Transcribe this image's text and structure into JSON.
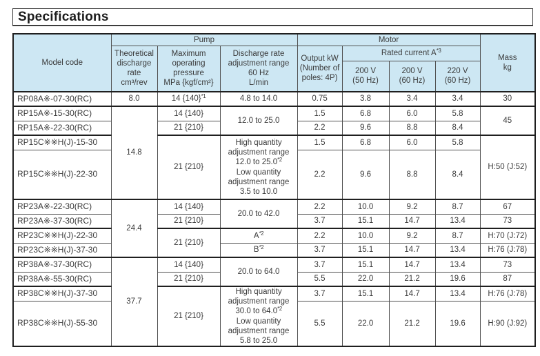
{
  "page": {
    "title": "Specifications"
  },
  "colors": {
    "header_fill": "#cde7f3",
    "border_thin": "#4f4f4f",
    "border_thick": "#1f1f1f",
    "text": "#3a3a3a"
  },
  "table": {
    "header": {
      "model_code": "Model code",
      "pump_group": "Pump",
      "motor_group": "Motor",
      "mass": "Mass\nkg",
      "theoretical_discharge": "Theoretical\ndischarge\nrate\ncm³/rev",
      "max_pressure": "Maximum\noperating\npressure\nMPa {kgf/cm²}",
      "discharge_range": "Discharge rate\nadjustment range\n60 Hz\nL/min",
      "output_kw": "Output kW\n(Number of\npoles: 4P)",
      "rated_current": "Rated current A*3",
      "v200_50": "200 V\n(50 Hz)",
      "v200_60": "200 V\n(60 Hz)",
      "v220_60": "220 V\n(60 Hz)"
    },
    "rows": [
      {
        "model": "RP08A※-07-30(RC)",
        "theoretical": "8.0",
        "pressure": "14 {140}*1",
        "range": "4.8 to 14.0",
        "output": "0.75",
        "a200_50": "3.8",
        "a200_60": "3.4",
        "a220_60": "3.4",
        "mass": "30"
      },
      {
        "model": "RP15A※-15-30(RC)",
        "theoretical": "14.8",
        "pressure": "14 {140}",
        "range": "12.0 to 25.0",
        "output": "1.5",
        "a200_50": "6.8",
        "a200_60": "6.0",
        "a220_60": "5.8",
        "mass": "45"
      },
      {
        "model": "RP15A※-22-30(RC)",
        "pressure": "21 {210}",
        "output": "2.2",
        "a200_50": "9.6",
        "a200_60": "8.8",
        "a220_60": "8.4"
      },
      {
        "model": "RP15C※※H(J)-15-30",
        "pressure": "21 {210}",
        "range": "High quantity\nadjustment range\n12.0 to 25.0*2\nLow quantity\nadjustment range\n3.5 to 10.0",
        "output": "1.5",
        "a200_50": "6.8",
        "a200_60": "6.0",
        "a220_60": "5.8",
        "mass": "H:50 (J:52)"
      },
      {
        "model": "RP15C※※H(J)-22-30",
        "output": "2.2",
        "a200_50": "9.6",
        "a200_60": "8.8",
        "a220_60": "8.4"
      },
      {
        "model": "RP23A※-22-30(RC)",
        "theoretical": "24.4",
        "pressure": "14 {140}",
        "range": "20.0 to 42.0",
        "output": "2.2",
        "a200_50": "10.0",
        "a200_60": "9.2",
        "a220_60": "8.7",
        "mass": "67"
      },
      {
        "model": "RP23A※-37-30(RC)",
        "pressure": "21 {210}",
        "output": "3.7",
        "a200_50": "15.1",
        "a200_60": "14.7",
        "a220_60": "13.4",
        "mass": "73"
      },
      {
        "model": "RP23C※※H(J)-22-30",
        "pressure": "21 {210}",
        "range": "A*2",
        "output": "2.2",
        "a200_50": "10.0",
        "a200_60": "9.2",
        "a220_60": "8.7",
        "mass": "H:70 (J:72)"
      },
      {
        "model": "RP23C※※H(J)-37-30",
        "range": "B*2",
        "output": "3.7",
        "a200_50": "15.1",
        "a200_60": "14.7",
        "a220_60": "13.4",
        "mass": "H:76 (J:78)"
      },
      {
        "model": "RP38A※-37-30(RC)",
        "theoretical": "37.7",
        "pressure": "14 {140}",
        "range": "20.0 to 64.0",
        "output": "3.7",
        "a200_50": "15.1",
        "a200_60": "14.7",
        "a220_60": "13.4",
        "mass": "73"
      },
      {
        "model": "RP38A※-55-30(RC)",
        "pressure": "21 {210}",
        "output": "5.5",
        "a200_50": "22.0",
        "a200_60": "21.2",
        "a220_60": "19.6",
        "mass": "87"
      },
      {
        "model": "RP38C※※H(J)-37-30",
        "pressure": "21 {210}",
        "range": "High quantity\nadjustment range\n30.0 to 64.0*2\nLow quantity\nadjustment range\n5.8 to 25.0",
        "output": "3.7",
        "a200_50": "15.1",
        "a200_60": "14.7",
        "a220_60": "13.4",
        "mass": "H:76 (J:78)"
      },
      {
        "model": "RP38C※※H(J)-55-30",
        "output": "5.5",
        "a200_50": "22.0",
        "a200_60": "21.2",
        "a220_60": "19.6",
        "mass": "H:90 (J:92)"
      }
    ]
  }
}
